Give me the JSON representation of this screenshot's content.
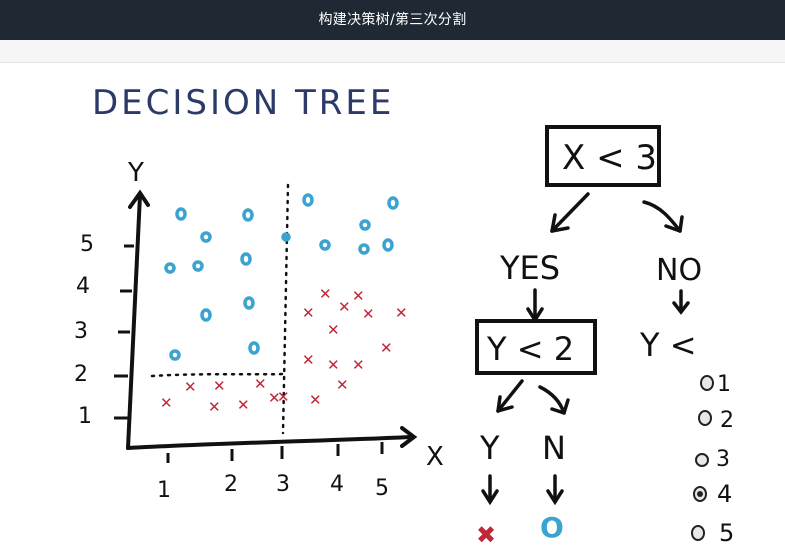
{
  "window": {
    "title": "构建决策树/第三次分割"
  },
  "slide": {
    "title": "DECISION TREE",
    "plot": {
      "y_axis_label": "Y",
      "x_axis_label": "X",
      "x_ticks": [
        "1",
        "2",
        "3",
        "4",
        "5"
      ],
      "y_ticks": [
        "1",
        "2",
        "3",
        "4",
        "5"
      ]
    },
    "tree": {
      "root": "X < 3",
      "yes_label": "YES",
      "no_label": "NO",
      "left_node": "Y < 2",
      "right_node": "Y <",
      "leaf_yes": "Y",
      "leaf_no": "N",
      "leaf_yes_symbol": "✖",
      "leaf_no_symbol": "O"
    },
    "options": [
      {
        "label": "1",
        "selected": false
      },
      {
        "label": "2",
        "selected": false
      },
      {
        "label": "3",
        "selected": false
      },
      {
        "label": "4",
        "selected": true
      },
      {
        "label": "5",
        "selected": false
      }
    ]
  },
  "colors": {
    "title_blue": "#2b3a67",
    "circle_blue": "#3aa3cf",
    "cross_red": "#c0283a",
    "ink": "#111111",
    "topbar": "#1f2933"
  }
}
